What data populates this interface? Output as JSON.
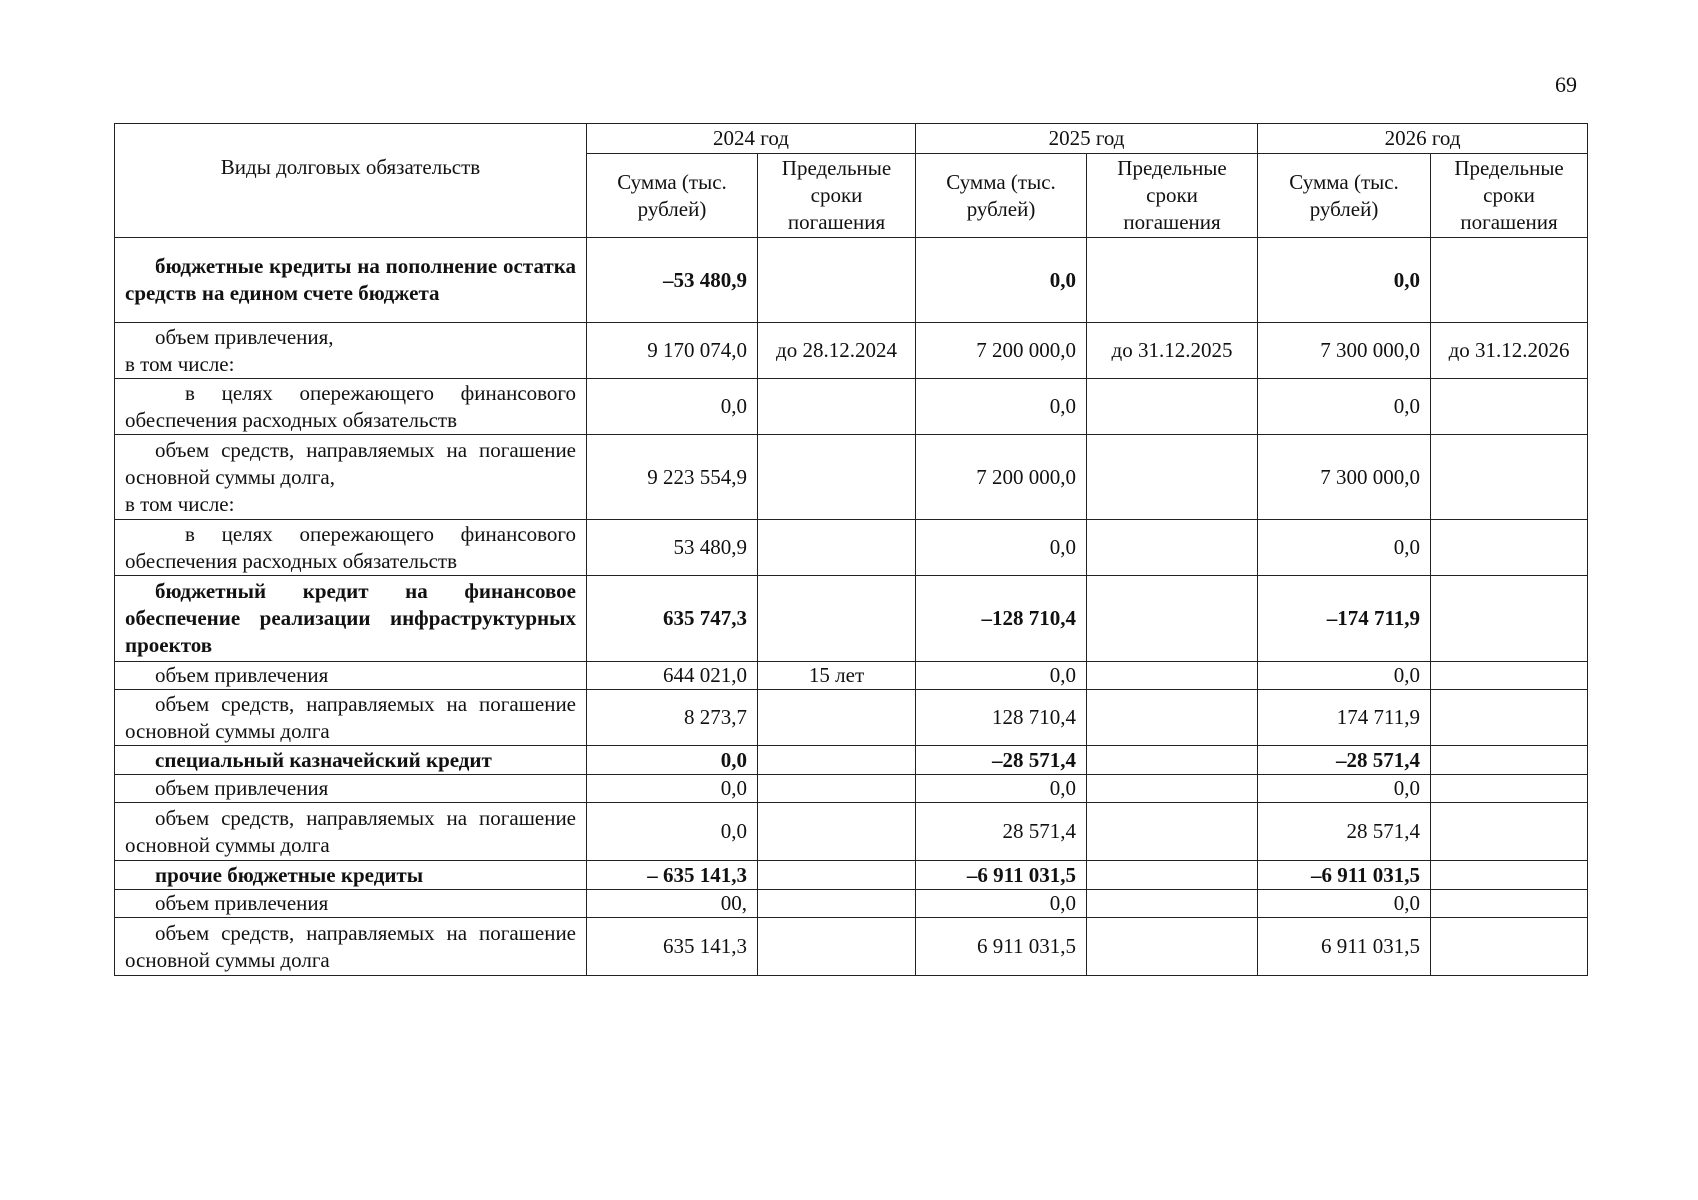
{
  "page_number": "69",
  "header": {
    "type_col": "Виды долговых обязательств",
    "years": [
      "2024 год",
      "2025 год",
      "2026 год"
    ],
    "sum_col": "Сумма (тыс. рублей)",
    "term_col": "Предельные сроки погашения"
  },
  "rows": [
    {
      "label": "бюджетные кредиты на пополнение остатка средств на едином счете бюджета",
      "bold": true,
      "indent": 1,
      "v": [
        "–53 480,9",
        "",
        "0,0",
        "",
        "0,0",
        ""
      ]
    },
    {
      "label": "объем привлечения,\nв том числе:",
      "bold": false,
      "indent": 1,
      "v": [
        "9 170 074,0",
        "до 28.12.2024",
        "7 200 000,0",
        "до 31.12.2025",
        "7 300 000,0",
        "до 31.12.2026"
      ]
    },
    {
      "label": "в целях опережающего финансового обеспечения расходных обязательств",
      "bold": false,
      "indent": 2,
      "v": [
        "0,0",
        "",
        "0,0",
        "",
        "0,0",
        ""
      ]
    },
    {
      "label": "объем средств, направляемых на погашение основной суммы долга,\nв том числе:",
      "bold": false,
      "indent": 1,
      "v": [
        "9 223 554,9",
        "",
        "7 200 000,0",
        "",
        "7 300 000,0",
        ""
      ]
    },
    {
      "label": "в целях опережающего финансового обеспечения расходных обязательств",
      "bold": false,
      "indent": 2,
      "v": [
        "53 480,9",
        "",
        "0,0",
        "",
        "0,0",
        ""
      ]
    },
    {
      "label": "бюджетный кредит на финансовое обеспечение реализации инфраструктурных проектов",
      "bold": true,
      "indent": 1,
      "v": [
        "635 747,3",
        "",
        "–128 710,4",
        "",
        "–174 711,9",
        ""
      ]
    },
    {
      "label": "объем привлечения",
      "bold": false,
      "indent": 1,
      "v": [
        "644  021,0",
        "15 лет",
        "0,0",
        "",
        "0,0",
        ""
      ]
    },
    {
      "label": "объем средств, направляемых на погашение основной суммы долга",
      "bold": false,
      "indent": 1,
      "v": [
        "8 273,7",
        "",
        "128 710,4",
        "",
        "174 711,9",
        ""
      ]
    },
    {
      "label": "специальный казначейский кредит",
      "bold": true,
      "indent": 1,
      "v": [
        "0,0",
        "",
        "–28 571,4",
        "",
        "–28 571,4",
        ""
      ]
    },
    {
      "label": "объем привлечения",
      "bold": false,
      "indent": 1,
      "v": [
        "0,0",
        "",
        "0,0",
        "",
        "0,0",
        ""
      ]
    },
    {
      "label": "объем средств, направляемых на погашение основной суммы долга",
      "bold": false,
      "indent": 1,
      "v": [
        "0,0",
        "",
        "28 571,4",
        "",
        "28 571,4",
        ""
      ]
    },
    {
      "label": "прочие бюджетные кредиты",
      "bold": true,
      "indent": 1,
      "v": [
        "– 635 141,3",
        "",
        "–6 911 031,5",
        "",
        "–6 911 031,5",
        ""
      ]
    },
    {
      "label": "объем привлечения",
      "bold": false,
      "indent": 1,
      "v": [
        "00,",
        "",
        "0,0",
        "",
        "0,0",
        ""
      ]
    },
    {
      "label": "объем средств, направляемых на погашение основной суммы долга",
      "bold": false,
      "indent": 1,
      "v": [
        "635 141,3",
        "",
        "6 911 031,5",
        "",
        "6 911 031,5",
        ""
      ]
    }
  ]
}
